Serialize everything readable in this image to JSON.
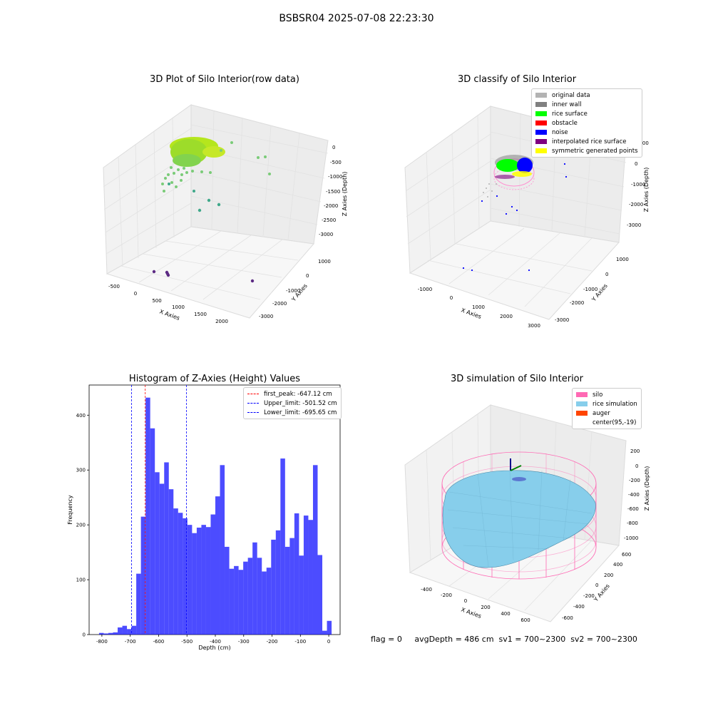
{
  "figure": {
    "suptitle": "BSBSR04 2025-07-08 22:23:30"
  },
  "panels": {
    "raw": {
      "title": "3D Plot of Silo Interior(row data)",
      "xlabel": "X Axies",
      "ylabel": "Y Axies",
      "zlabel": "Z Axies (Depth)",
      "xticks": [
        "-500",
        "0",
        "500",
        "1000",
        "1500",
        "2000"
      ],
      "yticks": [
        "1000",
        "0",
        "-1000",
        "-2000",
        "-3000"
      ],
      "zticks": [
        "0",
        "-500",
        "-1000",
        "-1500",
        "-2000",
        "-2500",
        "-3000"
      ]
    },
    "classify": {
      "title": "3D classify of Silo Interior",
      "xlabel": "X Axies",
      "ylabel": "Y Axies",
      "zlabel": "Z Axies (Depth)",
      "xticks": [
        "-1000",
        "0",
        "1000",
        "2000",
        "3000"
      ],
      "yticks": [
        "1000",
        "0",
        "-1000",
        "-2000",
        "-3000"
      ],
      "zticks": [
        "1000",
        "0",
        "-1000",
        "-2000",
        "-3000"
      ],
      "legend": [
        {
          "label": "original data",
          "color": "#b3b3b3"
        },
        {
          "label": "inner wall",
          "color": "#808080"
        },
        {
          "label": "rice surface",
          "color": "#00ff00"
        },
        {
          "label": "obstacle",
          "color": "#ff0000"
        },
        {
          "label": "noise",
          "color": "#0000ff"
        },
        {
          "label": "interpolated rice surface",
          "color": "#800080"
        },
        {
          "label": "symmetric generated points",
          "color": "#ffff00"
        }
      ]
    },
    "simulation": {
      "title": "3D simulation of Silo Interior",
      "xlabel": "X Axies",
      "ylabel": "Y Axies",
      "zlabel": "Z Axies (Depth)",
      "xticks": [
        "-400",
        "-200",
        "0",
        "200",
        "400",
        "600"
      ],
      "yticks": [
        "600",
        "400",
        "200",
        "0",
        "-200",
        "-400",
        "-600"
      ],
      "zticks": [
        "200",
        "0",
        "-200",
        "-400",
        "-600",
        "-800",
        "-1000"
      ],
      "legend": [
        {
          "label": "silo",
          "color": "#ff69b4"
        },
        {
          "label": "rice simulation",
          "color": "#87ceeb"
        },
        {
          "label": "auger",
          "color": "#ff4500"
        },
        {
          "label": "center(95,-19)",
          "color": "#ffffff"
        }
      ]
    }
  },
  "footer": {
    "text": "flag = 0     avgDepth = 486 cm  sv1 = 700~2300  sv2 = 700~2300"
  },
  "chart_data": [
    {
      "type": "bar",
      "title": "Histogram of Z-Axies (Height) Values",
      "xlabel": "Depth (cm)",
      "ylabel": "Frequency",
      "xlim": [
        -845,
        40
      ],
      "ylim": [
        0,
        455
      ],
      "xticks": [
        -800,
        -700,
        -600,
        -500,
        -400,
        -300,
        -200,
        -100,
        0
      ],
      "yticks": [
        0,
        100,
        200,
        300,
        400
      ],
      "bar_color": "#0000ff",
      "bin_edges_start": -810,
      "bin_width": 16.4,
      "values": [
        3,
        2,
        3,
        4,
        13,
        16,
        10,
        16,
        111,
        215,
        432,
        376,
        296,
        275,
        314,
        265,
        230,
        222,
        212,
        200,
        185,
        195,
        200,
        196,
        219,
        252,
        309,
        160,
        120,
        125,
        118,
        133,
        140,
        168,
        140,
        115,
        122,
        173,
        190,
        321,
        160,
        176,
        221,
        144,
        217,
        209,
        309,
        145,
        7,
        25
      ],
      "vlines": [
        {
          "x": -647.12,
          "label": "first_peak: -647.12 cm",
          "color": "#ff0000",
          "style": "dashed"
        },
        {
          "x": -501.52,
          "label": "Upper_limit: -501.52 cm",
          "color": "#0000ff",
          "style": "dashed"
        },
        {
          "x": -695.65,
          "label": "Lower_limit: -695.65 cm",
          "color": "#0000ff",
          "style": "dashed"
        }
      ],
      "legend_position": "upper right"
    }
  ]
}
